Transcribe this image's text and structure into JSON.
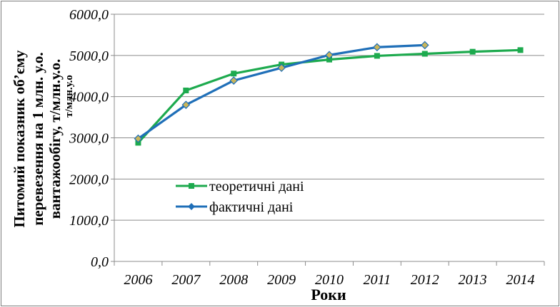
{
  "chart_data": {
    "type": "line",
    "x": [
      "2006",
      "2007",
      "2008",
      "2009",
      "2010",
      "2011",
      "2012",
      "2013",
      "2014"
    ],
    "xlabel": "Роки",
    "ylabel_lines": [
      "Питомий показник об’єму",
      "перевезення на 1 млн. у.о.",
      "вантажообігу, т/млн.у.о."
    ],
    "ylabel_overlay": "т/млн.у.о",
    "ylim": [
      0,
      6000
    ],
    "yticks": [
      "0,0",
      "1000,0",
      "2000,0",
      "3000,0",
      "4000,0",
      "5000,0",
      "6000,0"
    ],
    "ytick_values": [
      0,
      1000,
      2000,
      3000,
      4000,
      5000,
      6000
    ],
    "grid": true,
    "legend_position": "center-left",
    "series": [
      {
        "name": "теоретичні дані",
        "color": "#1daa4e",
        "marker": "square",
        "values": [
          2880,
          4150,
          4560,
          4780,
          4900,
          4990,
          5040,
          5090,
          5130
        ]
      },
      {
        "name": "фактичні дані",
        "color": "#1f6fb8",
        "marker": "diamond",
        "marker_fill": "#c9b55a",
        "values": [
          2980,
          3800,
          4390,
          4700,
          5010,
          5200,
          5250,
          null,
          null
        ]
      }
    ]
  }
}
